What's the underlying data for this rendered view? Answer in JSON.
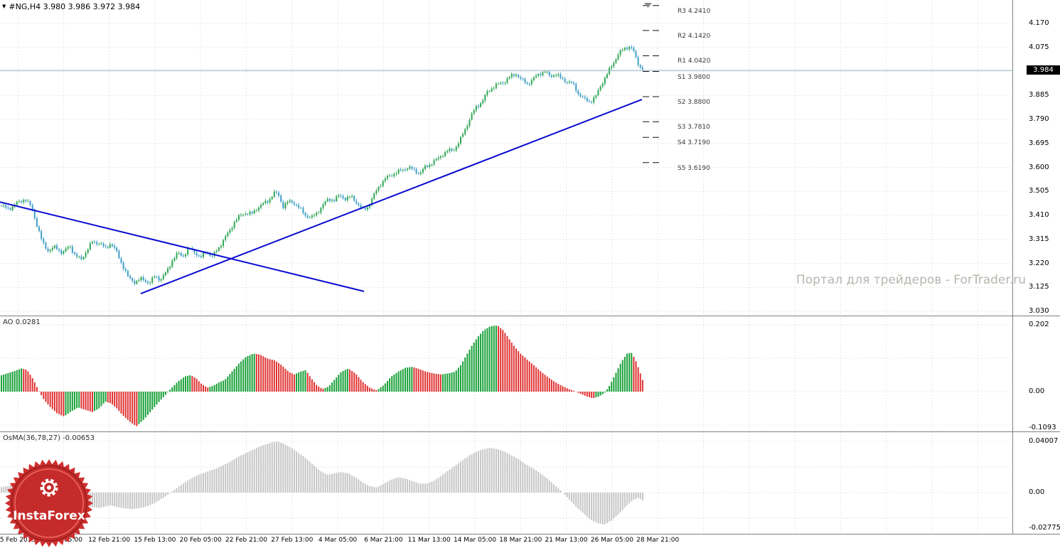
{
  "header": {
    "collapse_icon": "▼",
    "symbol_ohlc": "#NG,H4  3.980 3.986 3.972 3.984"
  },
  "watermark": "Портал для трейдеров - ForTrader.ru",
  "logo": {
    "text": "InstaForex"
  },
  "chart_data": [
    {
      "type": "candlestick",
      "title": "#NG,H4",
      "symbol": "#NG",
      "timeframe": "H4",
      "ohlc": {
        "open": "3.980",
        "high": "3.986",
        "low": "3.972",
        "close": "3.984"
      },
      "current_price": 3.984,
      "price_tag": "3.984",
      "bars": 290,
      "ylim": [
        3.03,
        4.17
      ],
      "yticks": [
        "4.170",
        "4.075",
        "3.885",
        "3.790",
        "3.695",
        "3.600",
        "3.505",
        "3.410",
        "3.315",
        "3.220",
        "3.125",
        "3.030"
      ],
      "grid_prices": [
        4.17,
        4.075,
        3.98,
        3.885,
        3.79,
        3.695,
        3.6,
        3.505,
        3.41,
        3.315,
        3.22,
        3.125,
        3.03
      ],
      "xticklabels": [
        "5 Feb 2013",
        "8 Feb 05:00",
        "12 Feb 21:00",
        "15 Feb 13:00",
        "20 Feb 05:00",
        "22 Feb 21:00",
        "27 Feb 13:00",
        "4 Mar 05:00",
        "6 Mar 21:00",
        "11 Mar 13:00",
        "14 Mar 05:00",
        "18 Mar 21:00",
        "21 Mar 13:00",
        "26 Mar 05:00",
        "28 Mar 21:00"
      ],
      "colors": {
        "up": "#2ea552",
        "down": "#3d9dc6",
        "trendline": "#0a0ad0"
      },
      "pivots": [
        {
          "label": "R3",
          "value": "4.2410",
          "price": 4.241
        },
        {
          "label": "R2",
          "value": "4.1420",
          "price": 4.142
        },
        {
          "label": "R1",
          "value": "4.0420",
          "price": 4.042
        },
        {
          "label": "S1",
          "value": "3.9800",
          "price": 3.98
        },
        {
          "label": "S2",
          "value": "3.8800",
          "price": 3.88
        },
        {
          "label": "S3",
          "value": "3.7810",
          "price": 3.781
        },
        {
          "label": "S4",
          "value": "3.7190",
          "price": 3.719
        },
        {
          "label": "S5",
          "value": "3.6190",
          "price": 3.619
        }
      ],
      "trendlines": [
        {
          "x1": 0,
          "p1": 3.463,
          "x2": 512,
          "p2": 3.109
        },
        {
          "x1": 198,
          "p1": 3.1,
          "x2": 903,
          "p2": 3.869
        }
      ],
      "close_anchors": [
        [
          0,
          3.45
        ],
        [
          12,
          3.435
        ],
        [
          25,
          3.46
        ],
        [
          35,
          3.475
        ],
        [
          45,
          3.44
        ],
        [
          52,
          3.37
        ],
        [
          60,
          3.3
        ],
        [
          68,
          3.27
        ],
        [
          78,
          3.285
        ],
        [
          88,
          3.26
        ],
        [
          98,
          3.29
        ],
        [
          106,
          3.25
        ],
        [
          114,
          3.235
        ],
        [
          122,
          3.27
        ],
        [
          130,
          3.305
        ],
        [
          140,
          3.3
        ],
        [
          148,
          3.28
        ],
        [
          156,
          3.3
        ],
        [
          164,
          3.265
        ],
        [
          172,
          3.215
        ],
        [
          180,
          3.165
        ],
        [
          190,
          3.145
        ],
        [
          200,
          3.16
        ],
        [
          210,
          3.14
        ],
        [
          218,
          3.17
        ],
        [
          226,
          3.155
        ],
        [
          234,
          3.185
        ],
        [
          242,
          3.23
        ],
        [
          250,
          3.26
        ],
        [
          258,
          3.25
        ],
        [
          266,
          3.28
        ],
        [
          274,
          3.265
        ],
        [
          282,
          3.24
        ],
        [
          290,
          3.27
        ],
        [
          298,
          3.245
        ],
        [
          306,
          3.275
        ],
        [
          314,
          3.31
        ],
        [
          322,
          3.345
        ],
        [
          330,
          3.385
        ],
        [
          338,
          3.41
        ],
        [
          346,
          3.42
        ],
        [
          354,
          3.415
        ],
        [
          362,
          3.44
        ],
        [
          370,
          3.455
        ],
        [
          378,
          3.47
        ],
        [
          386,
          3.5
        ],
        [
          392,
          3.49
        ],
        [
          398,
          3.445
        ],
        [
          406,
          3.465
        ],
        [
          414,
          3.46
        ],
        [
          422,
          3.435
        ],
        [
          430,
          3.41
        ],
        [
          438,
          3.4
        ],
        [
          446,
          3.42
        ],
        [
          454,
          3.45
        ],
        [
          462,
          3.475
        ],
        [
          470,
          3.47
        ],
        [
          478,
          3.49
        ],
        [
          486,
          3.475
        ],
        [
          494,
          3.485
        ],
        [
          502,
          3.46
        ],
        [
          510,
          3.43
        ],
        [
          518,
          3.445
        ],
        [
          526,
          3.49
        ],
        [
          534,
          3.53
        ],
        [
          542,
          3.555
        ],
        [
          550,
          3.57
        ],
        [
          558,
          3.58
        ],
        [
          566,
          3.59
        ],
        [
          574,
          3.6
        ],
        [
          582,
          3.59
        ],
        [
          590,
          3.575
        ],
        [
          598,
          3.6
        ],
        [
          606,
          3.615
        ],
        [
          614,
          3.63
        ],
        [
          622,
          3.65
        ],
        [
          630,
          3.665
        ],
        [
          638,
          3.67
        ],
        [
          646,
          3.7
        ],
        [
          654,
          3.75
        ],
        [
          662,
          3.8
        ],
        [
          670,
          3.84
        ],
        [
          678,
          3.86
        ],
        [
          686,
          3.9
        ],
        [
          694,
          3.92
        ],
        [
          702,
          3.93
        ],
        [
          710,
          3.94
        ],
        [
          718,
          3.96
        ],
        [
          726,
          3.97
        ],
        [
          734,
          3.945
        ],
        [
          742,
          3.93
        ],
        [
          750,
          3.95
        ],
        [
          758,
          3.97
        ],
        [
          766,
          3.98
        ],
        [
          774,
          3.96
        ],
        [
          782,
          3.97
        ],
        [
          790,
          3.95
        ],
        [
          798,
          3.94
        ],
        [
          806,
          3.93
        ],
        [
          814,
          3.89
        ],
        [
          822,
          3.87
        ],
        [
          830,
          3.86
        ],
        [
          838,
          3.88
        ],
        [
          846,
          3.93
        ],
        [
          854,
          3.97
        ],
        [
          862,
          4.01
        ],
        [
          870,
          4.05
        ],
        [
          878,
          4.07
        ],
        [
          886,
          4.08
        ],
        [
          891,
          4.06
        ],
        [
          896,
          4.02
        ],
        [
          901,
          3.995
        ],
        [
          905,
          3.984
        ]
      ]
    },
    {
      "type": "bar",
      "name": "AO",
      "label": "AO 0.0281",
      "value": 0.0281,
      "ytick_labels": [
        "0.202",
        "0.00",
        "-0.1093"
      ],
      "yticks": [
        0.202,
        0,
        -0.1093
      ],
      "grid_values": [
        0.202,
        0.101,
        0,
        -0.101
      ],
      "colors": {
        "up": "#18a038",
        "down": "#e03232"
      },
      "anchors": [
        [
          0,
          0.048
        ],
        [
          10,
          0.055
        ],
        [
          20,
          0.062
        ],
        [
          30,
          0.07
        ],
        [
          38,
          0.066
        ],
        [
          46,
          0.04
        ],
        [
          54,
          0.005
        ],
        [
          62,
          -0.025
        ],
        [
          70,
          -0.045
        ],
        [
          80,
          -0.065
        ],
        [
          90,
          -0.075
        ],
        [
          100,
          -0.06
        ],
        [
          110,
          -0.048
        ],
        [
          120,
          -0.055
        ],
        [
          130,
          -0.062
        ],
        [
          140,
          -0.05
        ],
        [
          148,
          -0.03
        ],
        [
          156,
          -0.035
        ],
        [
          164,
          -0.05
        ],
        [
          172,
          -0.07
        ],
        [
          182,
          -0.09
        ],
        [
          192,
          -0.105
        ],
        [
          202,
          -0.085
        ],
        [
          212,
          -0.06
        ],
        [
          222,
          -0.035
        ],
        [
          232,
          -0.012
        ],
        [
          240,
          0.008
        ],
        [
          250,
          0.03
        ],
        [
          260,
          0.046
        ],
        [
          268,
          0.05
        ],
        [
          276,
          0.04
        ],
        [
          284,
          0.022
        ],
        [
          292,
          0.012
        ],
        [
          300,
          0.018
        ],
        [
          308,
          0.028
        ],
        [
          316,
          0.035
        ],
        [
          326,
          0.06
        ],
        [
          336,
          0.085
        ],
        [
          346,
          0.105
        ],
        [
          356,
          0.115
        ],
        [
          366,
          0.112
        ],
        [
          376,
          0.1
        ],
        [
          386,
          0.095
        ],
        [
          396,
          0.08
        ],
        [
          406,
          0.06
        ],
        [
          414,
          0.052
        ],
        [
          422,
          0.06
        ],
        [
          430,
          0.065
        ],
        [
          438,
          0.04
        ],
        [
          446,
          0.018
        ],
        [
          454,
          0.008
        ],
        [
          462,
          0.015
        ],
        [
          470,
          0.035
        ],
        [
          480,
          0.06
        ],
        [
          490,
          0.07
        ],
        [
          500,
          0.055
        ],
        [
          510,
          0.03
        ],
        [
          520,
          0.012
        ],
        [
          530,
          0.004
        ],
        [
          540,
          0.02
        ],
        [
          550,
          0.045
        ],
        [
          560,
          0.06
        ],
        [
          570,
          0.072
        ],
        [
          580,
          0.075
        ],
        [
          590,
          0.068
        ],
        [
          600,
          0.06
        ],
        [
          610,
          0.055
        ],
        [
          620,
          0.052
        ],
        [
          630,
          0.055
        ],
        [
          640,
          0.06
        ],
        [
          648,
          0.08
        ],
        [
          656,
          0.11
        ],
        [
          664,
          0.14
        ],
        [
          672,
          0.165
        ],
        [
          680,
          0.185
        ],
        [
          690,
          0.198
        ],
        [
          700,
          0.2
        ],
        [
          708,
          0.185
        ],
        [
          716,
          0.16
        ],
        [
          724,
          0.135
        ],
        [
          732,
          0.115
        ],
        [
          740,
          0.1
        ],
        [
          748,
          0.085
        ],
        [
          756,
          0.07
        ],
        [
          764,
          0.055
        ],
        [
          772,
          0.042
        ],
        [
          780,
          0.03
        ],
        [
          790,
          0.018
        ],
        [
          800,
          0.008
        ],
        [
          810,
          0.0
        ],
        [
          818,
          -0.008
        ],
        [
          826,
          -0.015
        ],
        [
          834,
          -0.02
        ],
        [
          842,
          -0.015
        ],
        [
          850,
          -0.005
        ],
        [
          858,
          0.02
        ],
        [
          866,
          0.055
        ],
        [
          874,
          0.09
        ],
        [
          882,
          0.115
        ],
        [
          888,
          0.118
        ],
        [
          894,
          0.095
        ],
        [
          900,
          0.06
        ],
        [
          905,
          0.028
        ]
      ]
    },
    {
      "type": "bar",
      "name": "OsMA",
      "label": "OsMA(36,78,27) -0.00653",
      "value": -0.00653,
      "ytick_labels": [
        "0.04007",
        "0.00",
        "-0.02775"
      ],
      "yticks": [
        0.04007,
        0,
        -0.02775
      ],
      "grid_values": [
        0.04,
        0.02,
        0,
        -0.02
      ],
      "color": "#c6c6c6",
      "anchors": [
        [
          0,
          0.004
        ],
        [
          20,
          0.006
        ],
        [
          40,
          0.003
        ],
        [
          60,
          -0.001
        ],
        [
          80,
          -0.005
        ],
        [
          100,
          -0.009
        ],
        [
          120,
          -0.011
        ],
        [
          140,
          -0.012
        ],
        [
          155,
          -0.01
        ],
        [
          170,
          -0.012
        ],
        [
          185,
          -0.013
        ],
        [
          200,
          -0.012
        ],
        [
          215,
          -0.009
        ],
        [
          230,
          -0.004
        ],
        [
          245,
          0.002
        ],
        [
          260,
          0.008
        ],
        [
          275,
          0.013
        ],
        [
          290,
          0.016
        ],
        [
          305,
          0.019
        ],
        [
          320,
          0.023
        ],
        [
          335,
          0.028
        ],
        [
          350,
          0.032
        ],
        [
          365,
          0.036
        ],
        [
          380,
          0.039
        ],
        [
          390,
          0.04
        ],
        [
          400,
          0.038
        ],
        [
          410,
          0.035
        ],
        [
          420,
          0.031
        ],
        [
          430,
          0.027
        ],
        [
          440,
          0.022
        ],
        [
          450,
          0.017
        ],
        [
          460,
          0.014
        ],
        [
          470,
          0.015
        ],
        [
          480,
          0.016
        ],
        [
          490,
          0.015
        ],
        [
          500,
          0.012
        ],
        [
          510,
          0.008
        ],
        [
          520,
          0.005
        ],
        [
          530,
          0.004
        ],
        [
          540,
          0.007
        ],
        [
          550,
          0.01
        ],
        [
          560,
          0.012
        ],
        [
          570,
          0.011
        ],
        [
          580,
          0.009
        ],
        [
          590,
          0.007
        ],
        [
          600,
          0.007
        ],
        [
          610,
          0.009
        ],
        [
          620,
          0.013
        ],
        [
          630,
          0.017
        ],
        [
          640,
          0.021
        ],
        [
          650,
          0.025
        ],
        [
          660,
          0.029
        ],
        [
          670,
          0.032
        ],
        [
          680,
          0.034
        ],
        [
          690,
          0.035
        ],
        [
          700,
          0.034
        ],
        [
          710,
          0.032
        ],
        [
          720,
          0.029
        ],
        [
          730,
          0.026
        ],
        [
          740,
          0.022
        ],
        [
          750,
          0.019
        ],
        [
          760,
          0.015
        ],
        [
          770,
          0.011
        ],
        [
          780,
          0.006
        ],
        [
          790,
          0.001
        ],
        [
          800,
          -0.005
        ],
        [
          810,
          -0.011
        ],
        [
          820,
          -0.016
        ],
        [
          830,
          -0.021
        ],
        [
          840,
          -0.024
        ],
        [
          850,
          -0.025
        ],
        [
          860,
          -0.022
        ],
        [
          870,
          -0.017
        ],
        [
          880,
          -0.011
        ],
        [
          890,
          -0.006
        ],
        [
          898,
          -0.004
        ],
        [
          905,
          -0.0065
        ]
      ]
    }
  ]
}
